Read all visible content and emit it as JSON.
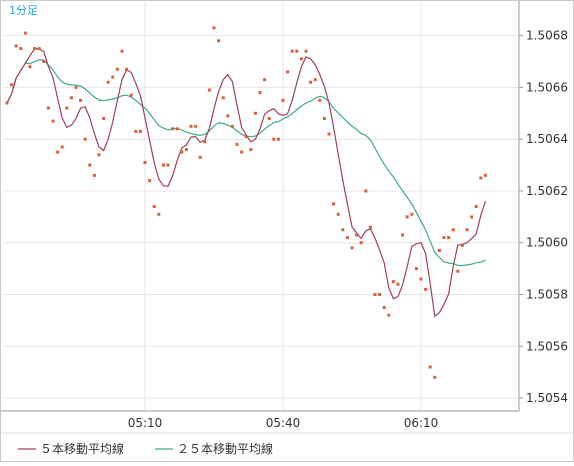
{
  "chart_data": {
    "type": "line",
    "timeframe_label": "1分足",
    "y_axis": {
      "min": 1.50535,
      "max": 1.50693,
      "ticks": [
        "1.5054",
        "1.5056",
        "1.5058",
        "1.5060",
        "1.5062",
        "1.5064",
        "1.5066",
        "1.5068"
      ]
    },
    "x_axis": {
      "labels": [
        "05:10",
        "05:40",
        "06:10"
      ],
      "label_indices": [
        30,
        60,
        90
      ]
    },
    "grid": true,
    "legend": "bottom",
    "colors": {
      "ma5": "#a0405a",
      "ma25": "#3daa8c",
      "price_points": "#d9603b",
      "grid": "#e6e6e6",
      "frame": "#9a9a9a",
      "tick_text": "#333333",
      "timeframe_text": "#29a3d6"
    },
    "price_points": [
      1.50654,
      1.50661,
      1.50676,
      1.50675,
      1.50681,
      1.50668,
      1.50675,
      1.50675,
      1.5067,
      1.50652,
      1.50647,
      1.50635,
      1.50637,
      1.50652,
      1.50656,
      1.5066,
      1.50655,
      1.5064,
      1.5063,
      1.50626,
      1.50634,
      1.50648,
      1.50662,
      1.50664,
      1.50667,
      1.50674,
      1.50667,
      1.50657,
      1.50643,
      1.50643,
      1.50631,
      1.50624,
      1.50614,
      1.50611,
      1.5063,
      1.5063,
      1.50644,
      1.50644,
      1.50635,
      1.50636,
      1.50645,
      1.50645,
      1.50633,
      1.50639,
      1.50659,
      1.50683,
      1.50678,
      1.50656,
      1.50649,
      1.50645,
      1.50638,
      1.50635,
      1.50641,
      1.50636,
      1.5065,
      1.50658,
      1.50663,
      1.50648,
      1.5064,
      1.5064,
      1.50655,
      1.50666,
      1.50674,
      1.50674,
      1.50671,
      1.50674,
      1.50662,
      1.50663,
      1.50655,
      1.50648,
      1.50642,
      1.50615,
      1.50611,
      1.50605,
      1.50602,
      1.50598,
      1.50603,
      1.506,
      1.5062,
      1.50606,
      1.5058,
      1.5058,
      1.50575,
      1.50572,
      1.50585,
      1.50584,
      1.50603,
      1.5061,
      1.50611,
      1.5059,
      1.50586,
      1.50582,
      1.50552,
      1.50548,
      1.50597,
      1.50602,
      1.50602,
      1.50605,
      1.50589,
      1.50599,
      1.50605,
      1.5061,
      1.50614,
      1.50625,
      1.50626
    ]
  },
  "legend_items": [
    {
      "label": "５本移動平均線",
      "color": "#a0405a"
    },
    {
      "label": "２５本移動平均線",
      "color": "#3daa8c"
    }
  ]
}
